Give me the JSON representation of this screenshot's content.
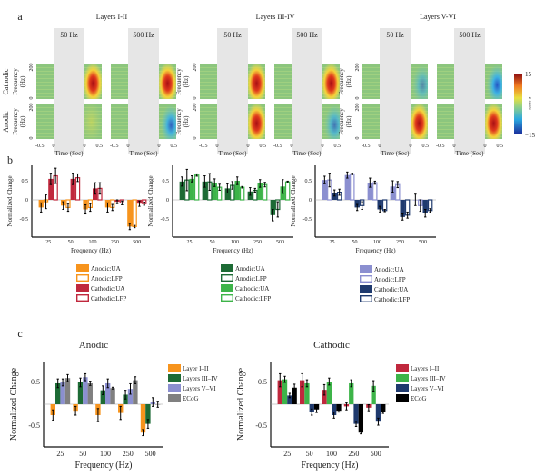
{
  "panel_a": {
    "label": "a",
    "groups": [
      {
        "title": "Layers I-II",
        "spectra": [
          {
            "freq_label": "50 Hz",
            "cathodic_peak_z": 14,
            "anodic_peak_z": 3
          },
          {
            "freq_label": "500 Hz",
            "cathodic_peak_z": 10,
            "anodic_peak_z": -8
          }
        ]
      },
      {
        "title": "Layers III-IV",
        "spectra": [
          {
            "freq_label": "50 Hz",
            "cathodic_peak_z": 13,
            "anodic_peak_z": 13
          },
          {
            "freq_label": "500 Hz",
            "cathodic_peak_z": 14,
            "anodic_peak_z": -6
          }
        ]
      },
      {
        "title": "Layers V-VI",
        "spectra": [
          {
            "freq_label": "50 Hz",
            "cathodic_peak_z": -4,
            "anodic_peak_z": 14
          },
          {
            "freq_label": "500 Hz",
            "cathodic_peak_z": -9,
            "anodic_peak_z": 10
          }
        ]
      }
    ],
    "row_labels": [
      "Cathodic",
      "Anodic"
    ],
    "ylabel_line1": "Frequency",
    "ylabel_line2": "(Hz)",
    "yticks": [
      "200",
      "0"
    ],
    "time_ticks": [
      "-0.5",
      "0",
      "0",
      "0.5"
    ],
    "xlabel": "Time (Sec)",
    "colorbar": {
      "max": "15",
      "min": "−15",
      "label": "z-score"
    }
  },
  "chart_data": [
    {
      "type": "bar",
      "panel": "b",
      "title": "",
      "xlabel": "Frequency (Hz)",
      "ylabel": "Normalized Change",
      "ylim": [
        -0.8,
        0.9
      ],
      "yticks": [
        "0.5",
        "0",
        "-0.5"
      ],
      "categories": [
        "25",
        "50",
        "100",
        "250",
        "500"
      ],
      "series": [
        {
          "name": "Anodic:UA",
          "color": "#f7941d",
          "hollow": false,
          "values": [
            -0.2,
            -0.15,
            -0.25,
            -0.2,
            -0.7
          ],
          "err": [
            0.12,
            0.1,
            0.12,
            0.12,
            0.08
          ]
        },
        {
          "name": "Anodic:LFP",
          "color": "#f7941d",
          "hollow": true,
          "values": [
            -0.05,
            -0.2,
            -0.2,
            -0.2,
            -0.7
          ],
          "err": [
            0.18,
            0.1,
            0.1,
            0.08,
            0.03
          ]
        },
        {
          "name": "Cathodic:UA",
          "color": "#c0283d",
          "hollow": false,
          "values": [
            0.55,
            0.55,
            0.3,
            -0.05,
            -0.1
          ],
          "err": [
            0.15,
            0.15,
            0.15,
            0.05,
            0.07
          ]
        },
        {
          "name": "Cathodic:LFP",
          "color": "#c0283d",
          "hollow": true,
          "values": [
            0.63,
            0.58,
            0.3,
            -0.08,
            -0.1
          ],
          "err": [
            0.2,
            0.1,
            0.15,
            0.05,
            0.04
          ]
        }
      ]
    },
    {
      "type": "bar",
      "panel": "b",
      "title": "",
      "xlabel": "Frequency (Hz)",
      "ylabel": "Normalized Change",
      "ylim": [
        -0.8,
        0.9
      ],
      "yticks": [
        "0.5",
        "0",
        "-0.5"
      ],
      "categories": [
        "25",
        "50",
        "100",
        "250",
        "500"
      ],
      "series": [
        {
          "name": "Anodic:UA",
          "color": "#1d6b35",
          "hollow": false,
          "values": [
            0.48,
            0.48,
            0.3,
            0.22,
            -0.4
          ],
          "err": [
            0.12,
            0.15,
            0.12,
            0.1,
            0.15
          ]
        },
        {
          "name": "Anodic:LFP",
          "color": "#1d6b35",
          "hollow": true,
          "values": [
            0.52,
            0.47,
            0.38,
            0.25,
            -0.25
          ],
          "err": [
            0.28,
            0.22,
            0.1,
            0.05,
            0.2
          ]
        },
        {
          "name": "Cathodic:UA",
          "color": "#3db449",
          "hollow": false,
          "values": [
            0.55,
            0.45,
            0.5,
            0.43,
            0.35
          ],
          "err": [
            0.08,
            0.1,
            0.1,
            0.1,
            0.18
          ]
        },
        {
          "name": "Cathodic:LFP",
          "color": "#3db449",
          "hollow": true,
          "values": [
            0.65,
            0.33,
            0.33,
            0.4,
            0.47
          ],
          "err": [
            0.03,
            0.08,
            0.02,
            0.06,
            0.02
          ]
        }
      ]
    },
    {
      "type": "bar",
      "panel": "b",
      "title": "",
      "xlabel": "Frequency (Hz)",
      "ylabel": "Normalized Change",
      "ylim": [
        -0.8,
        0.9
      ],
      "yticks": [
        "0.5",
        "0",
        "-0.5"
      ],
      "categories": [
        "25",
        "50",
        "100",
        "250",
        "500"
      ],
      "series": [
        {
          "name": "Anodic:UA",
          "color": "#8b8fd0",
          "hollow": false,
          "values": [
            0.52,
            0.65,
            0.45,
            0.35,
            0.0
          ],
          "err": [
            0.1,
            0.08,
            0.12,
            0.15,
            0.15
          ]
        },
        {
          "name": "Anodic:LFP",
          "color": "#8b8fd0",
          "hollow": true,
          "values": [
            0.52,
            0.68,
            0.45,
            0.4,
            -0.15
          ],
          "err": [
            0.18,
            0.02,
            0.04,
            0.08,
            0.15
          ]
        },
        {
          "name": "Cathodic:UA",
          "color": "#1f3a6e",
          "hollow": false,
          "values": [
            0.18,
            -0.2,
            -0.25,
            -0.45,
            -0.35
          ],
          "err": [
            0.08,
            0.08,
            0.08,
            0.08,
            0.1
          ]
        },
        {
          "name": "Cathodic:LFP",
          "color": "#1f3a6e",
          "hollow": true,
          "values": [
            0.2,
            -0.15,
            -0.28,
            -0.4,
            -0.28
          ],
          "err": [
            0.08,
            0.1,
            0.03,
            0.08,
            0.05
          ]
        }
      ]
    },
    {
      "type": "bar",
      "panel": "c",
      "title": "Anodic",
      "xlabel": "Frequency (Hz)",
      "ylabel": "Normalized Change",
      "ylim": [
        -1.0,
        1.0
      ],
      "yticks": [
        "0.5",
        "-0.5"
      ],
      "categories": [
        "25",
        "50",
        "100",
        "250",
        "500"
      ],
      "series": [
        {
          "name": "Layer I–II",
          "color": "#f7941d",
          "hollow": false,
          "values": [
            -0.25,
            -0.15,
            -0.25,
            -0.2,
            -0.65
          ],
          "err": [
            0.12,
            0.1,
            0.15,
            0.15,
            0.07
          ]
        },
        {
          "name": "Layers III–IV",
          "color": "#1d6b35",
          "hollow": false,
          "values": [
            0.48,
            0.5,
            0.32,
            0.22,
            -0.45
          ],
          "err": [
            0.1,
            0.1,
            0.1,
            0.1,
            0.1
          ]
        },
        {
          "name": "Layers V–VI",
          "color": "#8b8fd0",
          "hollow": false,
          "values": [
            0.5,
            0.62,
            0.48,
            0.35,
            0.05
          ],
          "err": [
            0.08,
            0.08,
            0.1,
            0.12,
            0.1
          ]
        },
        {
          "name": "ECoG",
          "color": "#808080",
          "hollow": false,
          "values": [
            0.6,
            0.48,
            0.37,
            0.55,
            0.0
          ],
          "err": [
            0.08,
            0.05,
            0.02,
            0.08,
            0.07
          ]
        }
      ]
    },
    {
      "type": "bar",
      "panel": "c",
      "title": "Cathodic",
      "xlabel": "Frequency (Hz)",
      "ylabel": "Normalized Change",
      "ylim": [
        -1.0,
        1.0
      ],
      "yticks": [
        "0.5",
        "-0.5"
      ],
      "categories": [
        "25",
        "50",
        "100",
        "250",
        "500"
      ],
      "series": [
        {
          "name": "Layers I–II",
          "color": "#c0283d",
          "hollow": false,
          "values": [
            0.55,
            0.55,
            0.33,
            -0.05,
            -0.08
          ],
          "err": [
            0.15,
            0.15,
            0.12,
            0.08,
            0.07
          ]
        },
        {
          "name": "Layers III–IV",
          "color": "#3db449",
          "hollow": false,
          "values": [
            0.57,
            0.48,
            0.52,
            0.48,
            0.42
          ],
          "err": [
            0.07,
            0.08,
            0.08,
            0.08,
            0.12
          ]
        },
        {
          "name": "Layers V–VI",
          "color": "#1f3a6e",
          "hollow": false,
          "values": [
            0.2,
            -0.18,
            -0.25,
            -0.45,
            -0.4
          ],
          "err": [
            0.05,
            0.07,
            0.07,
            0.06,
            0.08
          ]
        },
        {
          "name": "ECoG",
          "color": "#000000",
          "hollow": false,
          "values": [
            0.38,
            -0.12,
            -0.15,
            -0.65,
            -0.18
          ],
          "err": [
            0.08,
            0.07,
            0.03,
            0.03,
            0.03
          ]
        }
      ]
    }
  ],
  "panel_b": {
    "label": "b"
  },
  "panel_c": {
    "label": "c"
  }
}
